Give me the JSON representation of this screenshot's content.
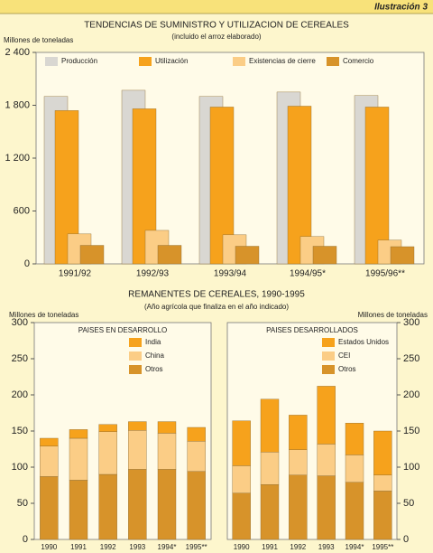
{
  "header": {
    "label": "Ilustración 3"
  },
  "chart_data": [
    {
      "type": "bar",
      "title": "TENDENCIAS DE SUMINISTRO Y UTILIZACION DE CEREALES",
      "subtitle": "(incluido el arroz elaborado)",
      "y_label": "Millones de toneladas",
      "categories": [
        "1991/92",
        "1992/93",
        "1993/94",
        "1994/95*",
        "1995/96**"
      ],
      "series": [
        {
          "name": "Producción",
          "color": "#d9d7d2",
          "values": [
            1900,
            1970,
            1900,
            1950,
            1910
          ]
        },
        {
          "name": "Utilización",
          "color": "#f6a21c",
          "values": [
            1740,
            1760,
            1780,
            1790,
            1780
          ]
        },
        {
          "name": "Existencias de cierre",
          "color": "#fbcd86",
          "values": [
            340,
            380,
            330,
            310,
            270
          ]
        },
        {
          "name": "Comercio",
          "color": "#d7932a",
          "values": [
            210,
            210,
            200,
            200,
            195
          ]
        }
      ],
      "ylim": [
        0,
        2400
      ],
      "yticks": [
        0,
        600,
        {
          "value": 1200,
          "label": "1 200"
        },
        {
          "value": 1800,
          "label": "1 800"
        },
        {
          "value": 2400,
          "label": "2 400"
        }
      ],
      "grid": false,
      "legend": "top"
    },
    {
      "type": "stacked_bar",
      "title": "REMANENTES DE CEREALES, 1990-1995",
      "subtitle": "(Año agrícola que finaliza en el año indicado)",
      "y_label": "Millones de toneladas",
      "panel_title": "PAISES EN DESARROLLO",
      "categories": [
        "1990",
        "1991",
        "1992",
        "1993",
        "1994*",
        "1995**"
      ],
      "series": [
        {
          "name": "India",
          "color": "#f6a21c",
          "values": [
            11,
            12,
            10,
            12,
            16,
            19
          ]
        },
        {
          "name": "China",
          "color": "#fbcd86",
          "values": [
            42,
            58,
            59,
            54,
            50,
            42
          ]
        },
        {
          "name": "Otros",
          "color": "#d7932a",
          "values": [
            87,
            82,
            90,
            97,
            97,
            94
          ]
        }
      ],
      "ylim": [
        0,
        300
      ],
      "yticks": [
        0,
        50,
        100,
        150,
        200,
        250,
        300
      ],
      "grid": false,
      "legend": "upper left",
      "axis_side": "left"
    },
    {
      "type": "stacked_bar",
      "y_label": "Millones de toneladas",
      "panel_title": "PAISES DESARROLLADOS",
      "categories": [
        "1990",
        "1991",
        "1992",
        "1993",
        "1994*",
        "1995**"
      ],
      "series": [
        {
          "name": "Estados Unidos",
          "color": "#f6a21c",
          "values": [
            62,
            73,
            48,
            80,
            44,
            61
          ]
        },
        {
          "name": "CEI",
          "color": "#fbcd86",
          "values": [
            38,
            45,
            35,
            44,
            38,
            22
          ]
        },
        {
          "name": "Otros",
          "color": "#d7932a",
          "values": [
            64,
            76,
            89,
            88,
            79,
            67
          ]
        }
      ],
      "ylim": [
        0,
        300
      ],
      "yticks": [
        0,
        50,
        100,
        150,
        200,
        250,
        300
      ],
      "grid": false,
      "legend": "upper left",
      "axis_side": "right"
    }
  ]
}
